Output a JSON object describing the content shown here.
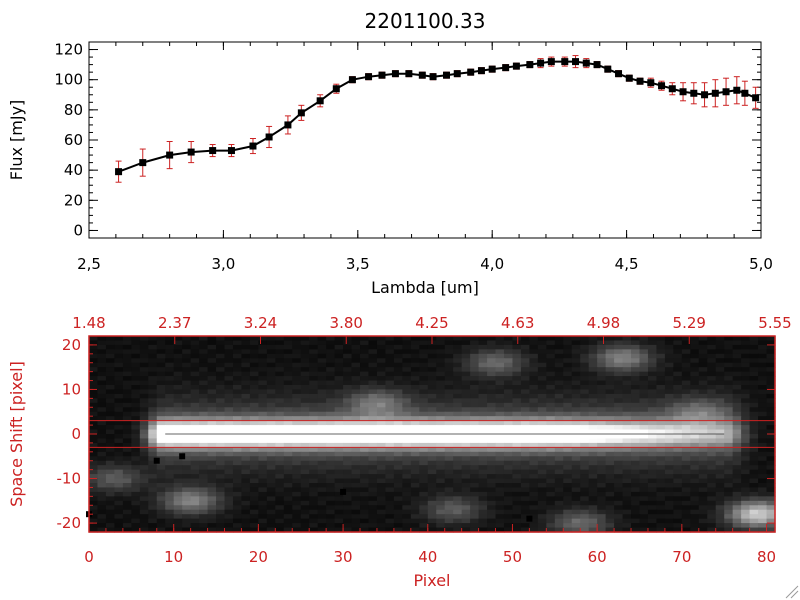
{
  "chart_data": [
    {
      "type": "line",
      "title": "2201100.33",
      "xlabel": "Lambda [um]",
      "ylabel": "Flux [mJy]",
      "xlim": [
        2.5,
        5.0
      ],
      "ylim": [
        -5,
        125
      ],
      "xticks": [
        2.5,
        3.0,
        3.5,
        4.0,
        4.5,
        5.0
      ],
      "xtick_labels": [
        "2,5",
        "3,0",
        "3,5",
        "4,0",
        "4,5",
        "5,0"
      ],
      "yticks": [
        0,
        20,
        40,
        60,
        80,
        100,
        120
      ],
      "ytick_labels": [
        "0",
        "20",
        "40",
        "60",
        "80",
        "100",
        "120"
      ],
      "series": [
        {
          "name": "spectrum",
          "color": "#000000",
          "marker_color": "#000000",
          "error_color": "#cc2222",
          "x": [
            2.61,
            2.7,
            2.8,
            2.88,
            2.96,
            3.03,
            3.11,
            3.17,
            3.24,
            3.29,
            3.36,
            3.42,
            3.48,
            3.54,
            3.59,
            3.64,
            3.69,
            3.74,
            3.78,
            3.83,
            3.87,
            3.92,
            3.96,
            4.0,
            4.05,
            4.09,
            4.14,
            4.18,
            4.22,
            4.27,
            4.31,
            4.35,
            4.39,
            4.43,
            4.47,
            4.51,
            4.55,
            4.59,
            4.63,
            4.67,
            4.71,
            4.75,
            4.79,
            4.83,
            4.87,
            4.91,
            4.94,
            4.98
          ],
          "y": [
            39,
            45,
            50,
            52,
            53,
            53,
            56,
            62,
            70,
            78,
            86,
            94,
            100,
            102,
            103,
            104,
            104,
            103,
            102,
            103,
            104,
            105,
            106,
            107,
            108,
            109,
            110,
            111,
            112,
            112,
            112,
            111,
            110,
            107,
            104,
            101,
            99,
            98,
            96,
            94,
            92,
            91,
            90,
            91,
            92,
            93,
            91,
            88
          ],
          "err": [
            7,
            9,
            9,
            7,
            4,
            4,
            5,
            7,
            6,
            5,
            4,
            3,
            2,
            2,
            2,
            2,
            2,
            2,
            2,
            2,
            2,
            2,
            2,
            2,
            2,
            2,
            2,
            3,
            3,
            3,
            4,
            3,
            2,
            2,
            2,
            2,
            2,
            3,
            3,
            4,
            6,
            7,
            8,
            9,
            9,
            9,
            8,
            7
          ]
        }
      ]
    },
    {
      "type": "heatmap",
      "title": "",
      "xlabel": "Pixel",
      "ylabel": "Space Shift [pixel]",
      "xlim": [
        0,
        81
      ],
      "ylim": [
        -22,
        22
      ],
      "xticks": [
        0,
        10,
        20,
        30,
        40,
        50,
        60,
        70,
        80
      ],
      "xtick_labels": [
        "0",
        "10",
        "20",
        "30",
        "40",
        "50",
        "60",
        "70",
        "80"
      ],
      "yticks": [
        -20,
        -10,
        0,
        10,
        20
      ],
      "ytick_labels": [
        "-20",
        "-10",
        "0",
        "10",
        "20"
      ],
      "top_axis_labels": [
        "1.48",
        "2.37",
        "3.24",
        "3.80",
        "4.25",
        "4.63",
        "4.98",
        "5.29",
        "5.55"
      ],
      "extraction_window": [
        -3,
        3
      ],
      "trace": {
        "x_start": 9,
        "x_end": 75,
        "center": 0,
        "width": 3
      },
      "blobs": [
        {
          "x": 12,
          "y": -15,
          "peak": 0.45
        },
        {
          "x": 34,
          "y": 7,
          "peak": 0.32
        },
        {
          "x": 48,
          "y": 16,
          "peak": 0.35
        },
        {
          "x": 63,
          "y": 17,
          "peak": 0.45
        },
        {
          "x": 79,
          "y": -18,
          "peak": 0.75
        },
        {
          "x": 3,
          "y": -10,
          "peak": 0.3
        },
        {
          "x": 58,
          "y": -20,
          "peak": 0.35
        },
        {
          "x": 43,
          "y": -17,
          "peak": 0.3
        },
        {
          "x": 72,
          "y": 5,
          "peak": 0.25
        }
      ],
      "dark_pixels": [
        {
          "x": 8,
          "y": -6
        },
        {
          "x": 11,
          "y": -5
        },
        {
          "x": 30,
          "y": -13
        },
        {
          "x": 52,
          "y": -19
        },
        {
          "x": 0,
          "y": -18
        }
      ],
      "axis_color": "#cc2222"
    }
  ]
}
